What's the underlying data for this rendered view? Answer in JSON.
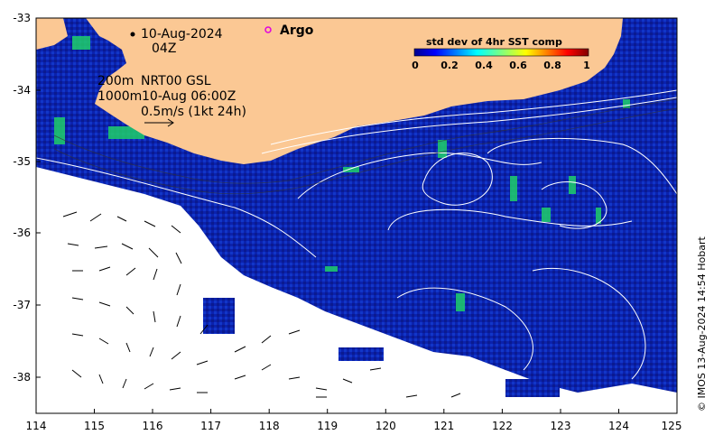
{
  "annotations": {
    "date": "10-Aug-2024",
    "time": "04Z",
    "depth_200": "200m",
    "depth_1000": "1000m",
    "altimetry": "NRT00 GSL",
    "altimetry_time": "10-Aug 06:00Z",
    "velocity_scale": "0.5m/s (1kt 24h)"
  },
  "legend": {
    "argo_label": "Argo",
    "argo_color": "#e000e0",
    "colorbar_title": "std dev of 4hr SST comp",
    "colorbar_ticks": [
      "0",
      "0.2",
      "0.4",
      "0.6",
      "0.8",
      "1"
    ]
  },
  "axes": {
    "x_ticks": [
      "114",
      "115",
      "116",
      "117",
      "118",
      "119",
      "120",
      "121",
      "122",
      "123",
      "124",
      "125"
    ],
    "y_ticks": [
      "-33",
      "-34",
      "-35",
      "-36",
      "-37",
      "-38"
    ],
    "xlim": [
      114,
      125
    ],
    "ylim": [
      -38.5,
      -33
    ]
  },
  "credit": "© IMOS 13-Aug-2024 14:54 Hobart",
  "colors": {
    "land": "#fbc894",
    "ocean_std_low": "#0a1fa8",
    "cloud": "#ffffff"
  }
}
